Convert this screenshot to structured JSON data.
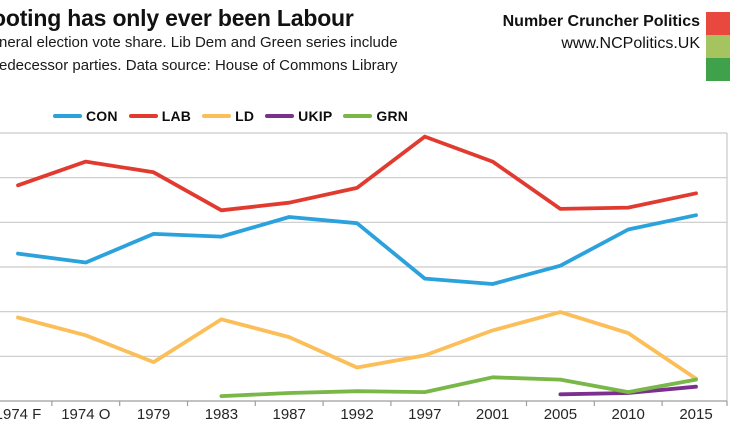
{
  "header": {
    "title": "ooting has only ever been Labour",
    "subtitle_line1": "neral election vote share. Lib Dem and Green series include",
    "subtitle_line2": "edecessor parties. Data source: House of Commons Library",
    "brand_name": "Number Cruncher Politics",
    "brand_url": "www.NCPolitics.UK",
    "logo_colors": [
      "#e9483e",
      "#a5c35e",
      "#3fa24b"
    ]
  },
  "chart_data": {
    "type": "line",
    "title": "ooting has only ever been Labour",
    "categories": [
      "1974 F",
      "1974 O",
      "1979",
      "1983",
      "1987",
      "1992",
      "1997",
      "2001",
      "2005",
      "2010",
      "2015"
    ],
    "series": [
      {
        "name": "CON",
        "color": "#2ba2dc",
        "values": [
          33,
          31,
          37.4,
          36.8,
          41.2,
          39.8,
          27.4,
          26.2,
          30.3,
          38.4,
          41.6
        ]
      },
      {
        "name": "LAB",
        "color": "#e13b30",
        "values": [
          48.3,
          53.6,
          51.2,
          42.7,
          44.4,
          47.7,
          59.2,
          53.6,
          43.0,
          43.3,
          46.5
        ]
      },
      {
        "name": "LD",
        "color": "#fbbe59",
        "values": [
          18.7,
          14.7,
          8.7,
          18.3,
          14.3,
          7.5,
          10.2,
          15.8,
          19.9,
          15.2,
          5.0
        ]
      },
      {
        "name": "UKIP",
        "color": "#7b2f8e",
        "values": [
          null,
          null,
          null,
          null,
          null,
          null,
          null,
          null,
          1.5,
          1.8,
          3.2
        ]
      },
      {
        "name": "GRN",
        "color": "#78b748",
        "values": [
          null,
          null,
          null,
          1.1,
          1.8,
          2.2,
          2.0,
          5.3,
          4.8,
          2.0,
          4.8
        ]
      }
    ],
    "ylim": [
      0,
      60
    ],
    "grid_interval": 10,
    "grid": "horizontal",
    "y_axis_labels_visible": false,
    "legend_position": "top-left",
    "grid_color": "#c9c9c9",
    "axis_color": "#9e9e9e"
  }
}
